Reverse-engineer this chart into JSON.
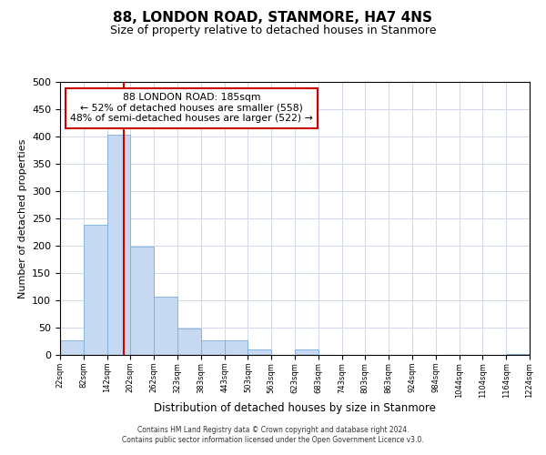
{
  "title": "88, LONDON ROAD, STANMORE, HA7 4NS",
  "subtitle": "Size of property relative to detached houses in Stanmore",
  "xlabel": "Distribution of detached houses by size in Stanmore",
  "ylabel": "Number of detached properties",
  "bar_color": "#c6d9f0",
  "bar_edge_color": "#7aafe0",
  "vline_x": 185,
  "vline_color": "#cc0000",
  "bin_edges": [
    22,
    82,
    142,
    202,
    262,
    323,
    383,
    443,
    503,
    563,
    623,
    683,
    743,
    803,
    863,
    924,
    984,
    1044,
    1104,
    1164,
    1224
  ],
  "bar_heights": [
    27,
    238,
    403,
    199,
    106,
    48,
    26,
    26,
    10,
    0,
    10,
    0,
    0,
    0,
    0,
    0,
    0,
    0,
    0,
    1
  ],
  "tick_labels": [
    "22sqm",
    "82sqm",
    "142sqm",
    "202sqm",
    "262sqm",
    "323sqm",
    "383sqm",
    "443sqm",
    "503sqm",
    "563sqm",
    "623sqm",
    "683sqm",
    "743sqm",
    "803sqm",
    "863sqm",
    "924sqm",
    "984sqm",
    "1044sqm",
    "1104sqm",
    "1164sqm",
    "1224sqm"
  ],
  "ylim": [
    0,
    500
  ],
  "yticks": [
    0,
    50,
    100,
    150,
    200,
    250,
    300,
    350,
    400,
    450,
    500
  ],
  "annotation_title": "88 LONDON ROAD: 185sqm",
  "annotation_line1": "← 52% of detached houses are smaller (558)",
  "annotation_line2": "48% of semi-detached houses are larger (522) →",
  "annotation_box_color": "#ffffff",
  "annotation_box_edge": "#cc0000",
  "footer1": "Contains HM Land Registry data © Crown copyright and database right 2024.",
  "footer2": "Contains public sector information licensed under the Open Government Licence v3.0.",
  "background_color": "#ffffff",
  "grid_color": "#d0d8e8",
  "title_fontsize": 11,
  "subtitle_fontsize": 9
}
